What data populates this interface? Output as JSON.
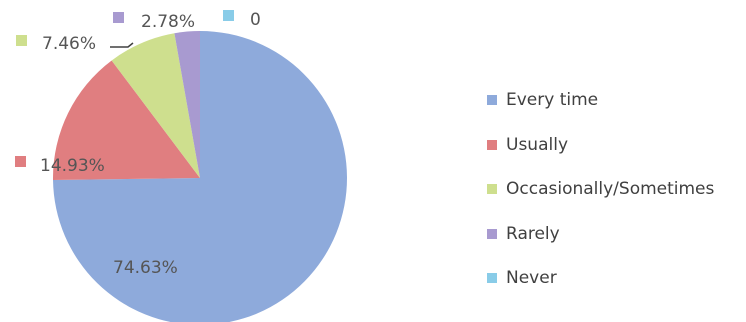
{
  "chart_data": {
    "type": "pie",
    "categories": [
      "Every time",
      "Usually",
      "Occasionally/Sometimes",
      "Rarely",
      "Never"
    ],
    "values": [
      74.63,
      14.93,
      7.46,
      2.78,
      0
    ],
    "labels": [
      "74.63%",
      "14.93%",
      "7.46%",
      "2.78%",
      "0"
    ],
    "colors": [
      "#8EAADB",
      "#E07E80",
      "#CEDF8E",
      "#A89AD0",
      "#89CCE8"
    ],
    "legend_position": "right"
  }
}
